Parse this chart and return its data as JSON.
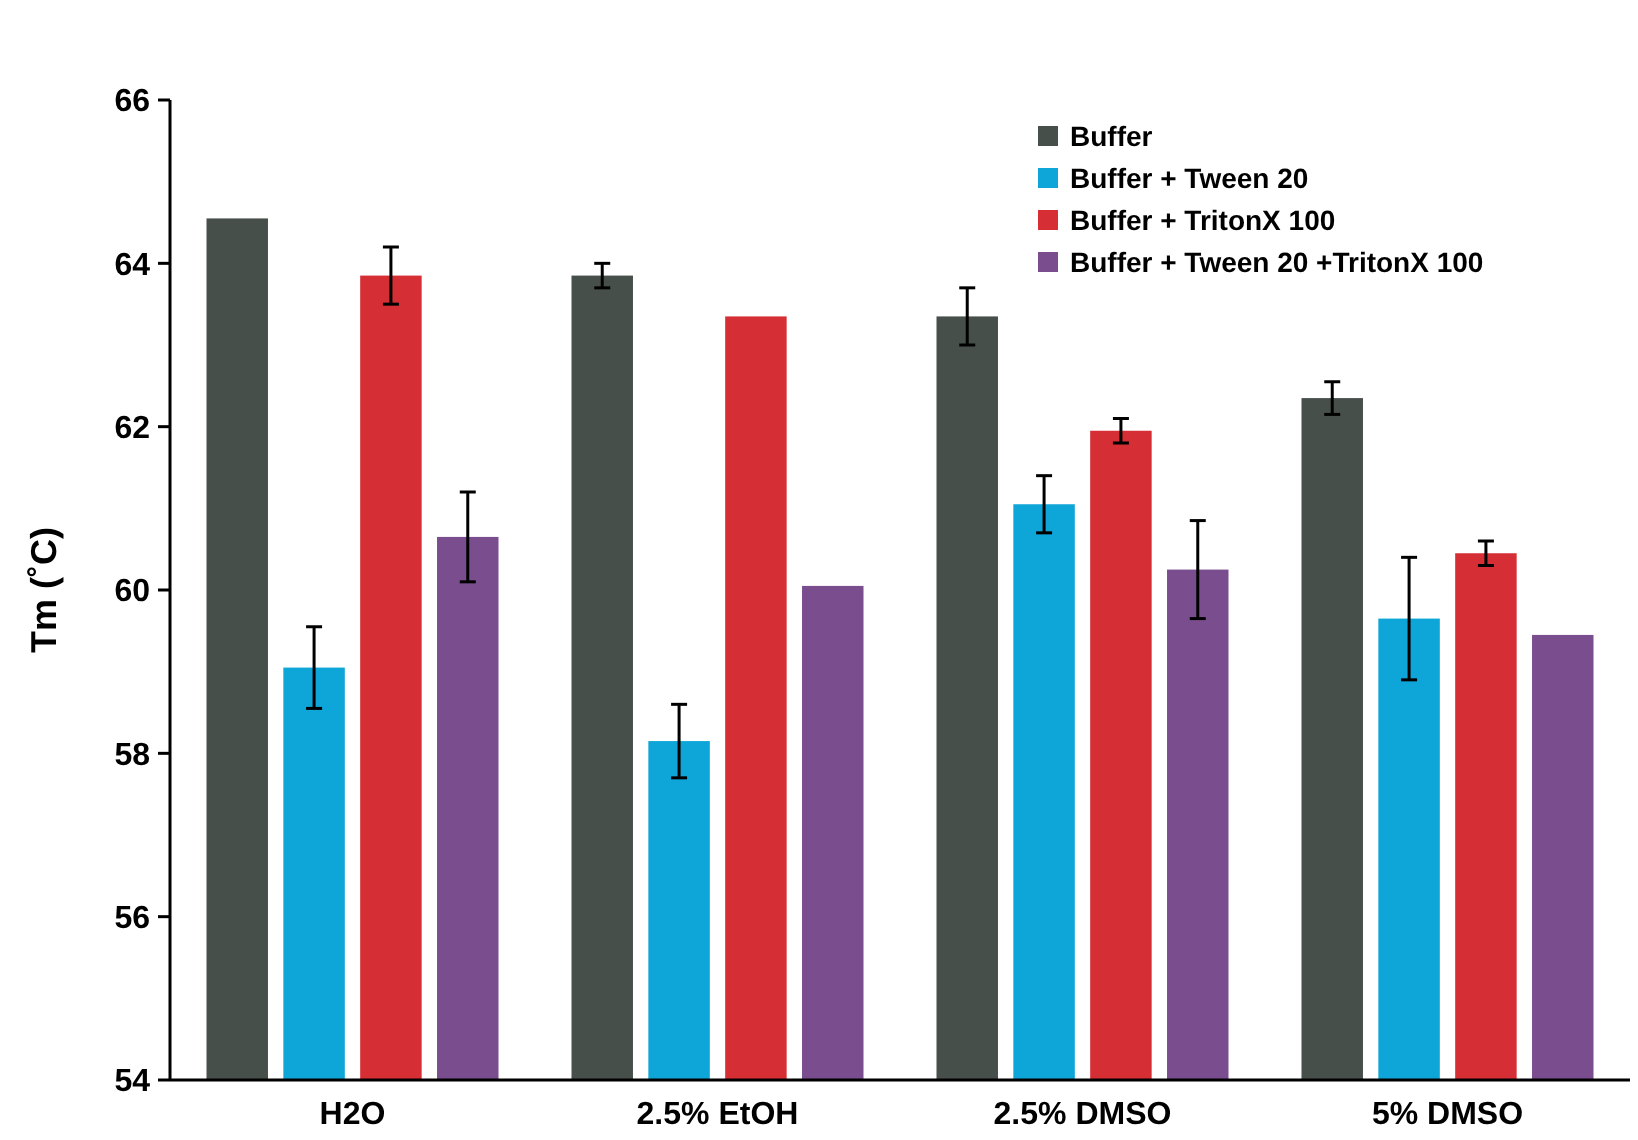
{
  "chart_data": {
    "type": "bar",
    "ylabel": "Tm (˚C)",
    "categories": [
      "H2O",
      "2.5% EtOH",
      "2.5% DMSO",
      "5% DMSO"
    ],
    "series": [
      {
        "name": "Buffer",
        "color": "#474f4b",
        "values": [
          64.55,
          63.85,
          63.35,
          62.35
        ],
        "errors": [
          null,
          0.15,
          0.35,
          0.2
        ]
      },
      {
        "name": "Buffer + Tween 20",
        "color": "#0ea5d8",
        "values": [
          59.05,
          58.15,
          61.05,
          59.65
        ],
        "errors": [
          0.5,
          0.45,
          0.35,
          0.75
        ]
      },
      {
        "name": "Buffer + TritonX 100",
        "color": "#d62e35",
        "values": [
          63.85,
          63.35,
          61.95,
          60.45
        ],
        "errors": [
          0.35,
          null,
          0.15,
          0.15
        ]
      },
      {
        "name": "Buffer + Tween 20 +TritonX 100",
        "color": "#7a4d8e",
        "values": [
          60.65,
          60.05,
          60.25,
          59.45
        ],
        "errors": [
          0.55,
          null,
          0.6,
          null
        ]
      }
    ],
    "ylim": [
      54,
      66
    ],
    "yticks": [
      54,
      56,
      58,
      60,
      62,
      64,
      66
    ],
    "grid": false,
    "legend": "top right"
  }
}
